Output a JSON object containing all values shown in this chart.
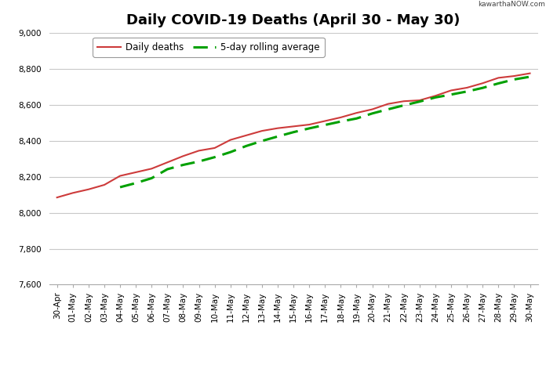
{
  "title": "Daily COVID-19 Deaths (April 30 - May 30)",
  "watermark": "kawarthaNOW.com",
  "legend_labels": [
    "Daily deaths",
    "5-day rolling average"
  ],
  "dates": [
    "30-Apr",
    "01-May",
    "02-May",
    "03-May",
    "04-May",
    "05-May",
    "06-May",
    "07-May",
    "08-May",
    "09-May",
    "10-May",
    "11-May",
    "12-May",
    "13-May",
    "14-May",
    "15-May",
    "16-May",
    "17-May",
    "18-May",
    "19-May",
    "20-May",
    "21-May",
    "22-May",
    "23-May",
    "24-May",
    "25-May",
    "26-May",
    "27-May",
    "28-May",
    "29-May",
    "30-May"
  ],
  "daily_deaths": [
    8085,
    8110,
    8130,
    8155,
    8205,
    8225,
    8245,
    8280,
    8315,
    8345,
    8360,
    8405,
    8430,
    8455,
    8470,
    8480,
    8490,
    8510,
    8530,
    8555,
    8575,
    8605,
    8620,
    8625,
    8650,
    8680,
    8695,
    8720,
    8750,
    8760,
    8775
  ],
  "rolling_avg": [
    null,
    null,
    null,
    null,
    8142,
    8165,
    8192,
    8242,
    8266,
    8285,
    8309,
    8337,
    8371,
    8399,
    8424,
    8448,
    8469,
    8488,
    8507,
    8524,
    8552,
    8575,
    8597,
    8618,
    8641,
    8657,
    8674,
    8694,
    8719,
    8741,
    8756
  ],
  "ylim": [
    7600,
    9000
  ],
  "yticks": [
    7600,
    7800,
    8000,
    8200,
    8400,
    8600,
    8800,
    9000
  ],
  "red_color": "#cd3b3b",
  "green_color": "#00a000",
  "background_color": "#ffffff",
  "plot_bg_color": "#ffffff",
  "grid_color": "#c8c8c8",
  "title_fontsize": 13,
  "tick_fontsize": 7.5,
  "legend_fontsize": 8.5
}
